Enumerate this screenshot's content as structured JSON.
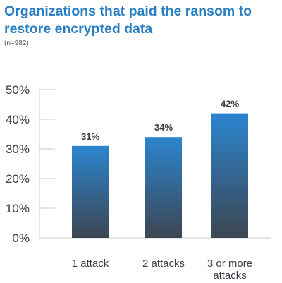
{
  "chart_data": {
    "type": "bar",
    "title": "Organizations that paid the ransom to restore encrypted data",
    "subtitle": "(n=982)",
    "categories": [
      "1 attack",
      "2 attacks",
      [
        "3 or more",
        "attacks"
      ]
    ],
    "values": [
      31,
      34,
      42
    ],
    "data_labels": [
      "31%",
      "34%",
      "42%"
    ],
    "yticks": [
      {
        "value": 0,
        "label": "0%"
      },
      {
        "value": 10,
        "label": "10%"
      },
      {
        "value": 20,
        "label": "20%"
      },
      {
        "value": 30,
        "label": "30%"
      },
      {
        "value": 40,
        "label": "40%"
      },
      {
        "value": 50,
        "label": "50%"
      }
    ],
    "ylim": [
      0,
      50
    ],
    "xlabel": "",
    "ylabel": "",
    "grid": false,
    "colors": {
      "bar_top": "#2b85cf",
      "bar_bottom": "#3d4652",
      "axis": "#c8ccd0",
      "title": "#2a7fc4"
    }
  }
}
